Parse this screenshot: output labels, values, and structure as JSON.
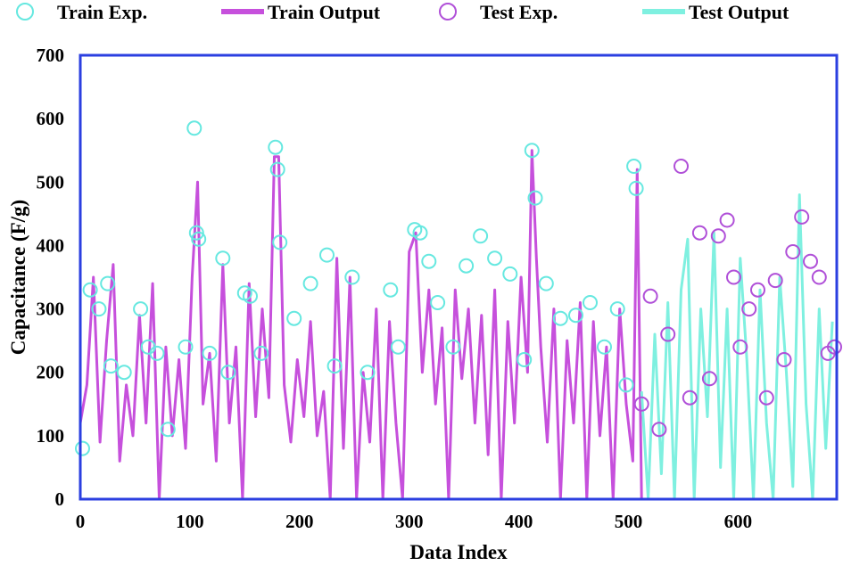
{
  "chart_data": {
    "type": "line",
    "xlabel": "Data Index",
    "ylabel": "Capacitance (F/g)",
    "xlim": [
      0,
      690
    ],
    "ylim": [
      0,
      700
    ],
    "xticks": [
      0,
      100,
      200,
      300,
      400,
      500,
      600
    ],
    "yticks": [
      0,
      100,
      200,
      300,
      400,
      500,
      600,
      700
    ],
    "grid": false,
    "legend_position": "top",
    "colors": {
      "train": "#c650dc",
      "test": "#7ff0e0",
      "frame": "#2b3fe0"
    },
    "series": [
      {
        "name": "Train Exp.",
        "kind": "marker",
        "color": "#66e8e0",
        "x": [
          2,
          9,
          17,
          25,
          28,
          40,
          55,
          62,
          70,
          80,
          96,
          104,
          106,
          108,
          118,
          130,
          135,
          150,
          155,
          165,
          178,
          180,
          182,
          195,
          210,
          225,
          232,
          248,
          262,
          283,
          290,
          305,
          310,
          318,
          326,
          340,
          352,
          365,
          378,
          392,
          405,
          412,
          415,
          425,
          438,
          452,
          465,
          478,
          490,
          498,
          505,
          507
        ],
        "y": [
          80,
          330,
          300,
          340,
          210,
          200,
          300,
          240,
          230,
          110,
          240,
          585,
          420,
          410,
          230,
          380,
          200,
          325,
          320,
          230,
          555,
          520,
          405,
          285,
          340,
          385,
          210,
          350,
          200,
          330,
          240,
          425,
          420,
          375,
          310,
          240,
          368,
          415,
          380,
          355,
          220,
          550,
          475,
          340,
          285,
          290,
          310,
          240,
          300,
          180,
          525,
          490
        ]
      },
      {
        "name": "Train Output",
        "kind": "line",
        "color": "#c650dc",
        "x": [
          0,
          6,
          12,
          18,
          24,
          30,
          36,
          42,
          48,
          54,
          60,
          66,
          72,
          78,
          84,
          90,
          96,
          102,
          107,
          112,
          118,
          124,
          130,
          136,
          142,
          148,
          154,
          160,
          166,
          172,
          177,
          181,
          186,
          192,
          198,
          204,
          210,
          216,
          222,
          228,
          234,
          240,
          246,
          252,
          258,
          264,
          270,
          276,
          282,
          288,
          294,
          300,
          306,
          312,
          318,
          324,
          330,
          336,
          342,
          348,
          354,
          360,
          366,
          372,
          378,
          384,
          390,
          396,
          402,
          408,
          412,
          416,
          420,
          426,
          432,
          438,
          444,
          450,
          456,
          462,
          468,
          474,
          480,
          486,
          492,
          498,
          504,
          508,
          512
        ],
        "y": [
          120,
          180,
          350,
          90,
          250,
          370,
          60,
          180,
          100,
          290,
          120,
          340,
          0,
          240,
          100,
          220,
          80,
          350,
          500,
          150,
          230,
          60,
          370,
          120,
          240,
          0,
          340,
          130,
          300,
          160,
          540,
          540,
          180,
          90,
          220,
          130,
          280,
          100,
          170,
          0,
          380,
          80,
          350,
          0,
          200,
          90,
          300,
          0,
          280,
          120,
          0,
          390,
          420,
          200,
          330,
          150,
          270,
          0,
          330,
          190,
          300,
          120,
          290,
          70,
          330,
          0,
          280,
          120,
          350,
          200,
          550,
          380,
          240,
          90,
          300,
          0,
          250,
          120,
          310,
          0,
          280,
          100,
          240,
          0,
          300,
          150,
          60,
          520,
          0
        ]
      },
      {
        "name": "Test Exp.",
        "kind": "marker",
        "color": "#b050d8",
        "x": [
          512,
          520,
          528,
          536,
          548,
          556,
          565,
          574,
          582,
          590,
          596,
          602,
          610,
          618,
          626,
          634,
          642,
          650,
          658,
          666,
          674,
          682,
          688
        ],
        "y": [
          150,
          320,
          110,
          260,
          525,
          160,
          420,
          190,
          415,
          440,
          350,
          240,
          300,
          330,
          160,
          345,
          220,
          390,
          445,
          375,
          350,
          230,
          240
        ]
      },
      {
        "name": "Test Output",
        "kind": "line",
        "color": "#7ff0e0",
        "x": [
          512,
          518,
          524,
          530,
          536,
          542,
          548,
          554,
          560,
          566,
          572,
          578,
          584,
          590,
          596,
          602,
          608,
          614,
          620,
          626,
          632,
          638,
          644,
          650,
          656,
          662,
          668,
          674,
          680,
          686
        ],
        "y": [
          170,
          0,
          260,
          40,
          310,
          0,
          330,
          410,
          0,
          300,
          130,
          420,
          50,
          300,
          0,
          380,
          220,
          0,
          330,
          120,
          0,
          350,
          200,
          20,
          480,
          150,
          0,
          300,
          80,
          280
        ]
      }
    ]
  }
}
